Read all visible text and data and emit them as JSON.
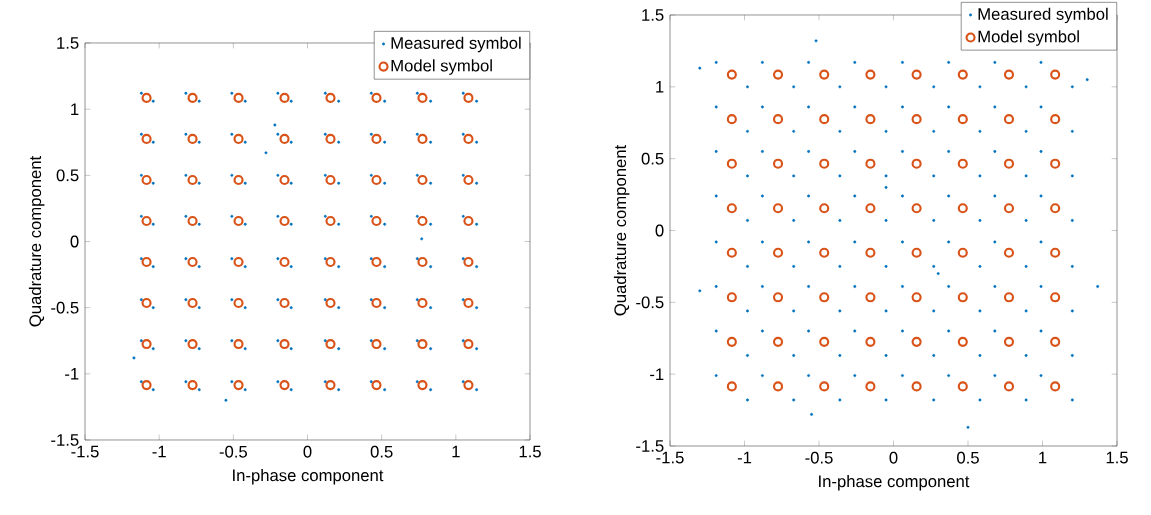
{
  "chart_data": [
    {
      "type": "scatter",
      "xlabel": "In-phase component",
      "ylabel": "Quadrature component",
      "xlim": [
        -1.5,
        1.5
      ],
      "ylim": [
        -1.5,
        1.5
      ],
      "xticks": [
        -1.5,
        -1,
        -0.5,
        0,
        0.5,
        1,
        1.5
      ],
      "yticks": [
        -1.5,
        -1,
        -0.5,
        0,
        0.5,
        1,
        1.5
      ],
      "grid": false,
      "legend": "top right",
      "marker": "circle",
      "series": [
        {
          "name": "Measured symbol",
          "color": "#0072bd",
          "x": [
            -1.12,
            -1.04,
            -0.82,
            -0.73,
            -0.51,
            -0.42,
            -0.2,
            -0.11,
            0.12,
            0.21,
            0.43,
            0.52,
            0.74,
            0.83,
            1.05,
            1.14,
            -1.12,
            -1.04,
            -0.82,
            -0.73,
            -0.51,
            -0.42,
            -0.2,
            -0.11,
            0.12,
            0.21,
            0.43,
            0.52,
            0.74,
            0.83,
            1.05,
            1.14,
            -1.12,
            -1.04,
            -0.82,
            -0.73,
            -0.51,
            -0.42,
            -0.2,
            -0.11,
            0.12,
            0.21,
            0.43,
            0.52,
            0.74,
            0.83,
            1.05,
            1.14,
            -1.12,
            -1.04,
            -0.82,
            -0.73,
            -0.51,
            -0.42,
            -0.2,
            -0.11,
            0.12,
            0.21,
            0.43,
            0.52,
            0.74,
            0.83,
            1.05,
            1.14,
            -1.12,
            -1.04,
            -0.82,
            -0.73,
            -0.51,
            -0.42,
            -0.2,
            -0.11,
            0.12,
            0.21,
            0.43,
            0.52,
            0.74,
            0.83,
            1.05,
            1.14,
            -1.12,
            -1.04,
            -0.82,
            -0.73,
            -0.51,
            -0.42,
            -0.2,
            -0.11,
            0.12,
            0.21,
            0.43,
            0.52,
            0.74,
            0.83,
            1.05,
            1.14,
            -1.12,
            -1.04,
            -0.82,
            -0.73,
            -0.51,
            -0.42,
            -0.2,
            -0.11,
            0.12,
            0.21,
            0.43,
            0.52,
            0.74,
            0.83,
            1.05,
            1.14,
            -1.12,
            -1.04,
            -0.82,
            -0.73,
            -0.51,
            -0.42,
            -0.2,
            -0.11,
            0.12,
            0.21,
            0.43,
            0.52,
            0.74,
            0.83,
            1.05,
            1.14,
            -0.55,
            -0.28,
            -0.22,
            -1.17,
            0.77
          ],
          "values": [
            1.12,
            1.06,
            1.12,
            1.06,
            1.12,
            1.06,
            1.12,
            1.06,
            1.12,
            1.06,
            1.12,
            1.06,
            1.12,
            1.06,
            1.12,
            1.06,
            0.81,
            0.75,
            0.81,
            0.75,
            0.81,
            0.75,
            0.81,
            0.75,
            0.81,
            0.75,
            0.81,
            0.75,
            0.81,
            0.75,
            0.81,
            0.75,
            0.5,
            0.44,
            0.5,
            0.44,
            0.5,
            0.44,
            0.5,
            0.44,
            0.5,
            0.44,
            0.5,
            0.44,
            0.5,
            0.44,
            0.5,
            0.44,
            0.19,
            0.13,
            0.19,
            0.13,
            0.19,
            0.13,
            0.19,
            0.13,
            0.19,
            0.13,
            0.19,
            0.13,
            0.19,
            0.13,
            0.19,
            0.13,
            -0.13,
            -0.19,
            -0.13,
            -0.19,
            -0.13,
            -0.19,
            -0.13,
            -0.19,
            -0.13,
            -0.19,
            -0.13,
            -0.19,
            -0.13,
            -0.19,
            -0.13,
            -0.19,
            -0.44,
            -0.5,
            -0.44,
            -0.5,
            -0.44,
            -0.5,
            -0.44,
            -0.5,
            -0.44,
            -0.5,
            -0.44,
            -0.5,
            -0.44,
            -0.5,
            -0.44,
            -0.5,
            -0.75,
            -0.81,
            -0.75,
            -0.81,
            -0.75,
            -0.81,
            -0.75,
            -0.81,
            -0.75,
            -0.81,
            -0.75,
            -0.81,
            -0.75,
            -0.81,
            -0.75,
            -0.81,
            -1.06,
            -1.12,
            -1.06,
            -1.12,
            -1.06,
            -1.12,
            -1.06,
            -1.12,
            -1.06,
            -1.12,
            -1.06,
            -1.12,
            -1.06,
            -1.12,
            -1.06,
            -1.12,
            -1.2,
            0.67,
            0.88,
            -0.88,
            0.02
          ]
        },
        {
          "name": "Model symbol",
          "color": "#d95319",
          "x": [
            -1.085,
            -0.775,
            -0.465,
            -0.155,
            0.155,
            0.465,
            0.775,
            1.085,
            -1.085,
            -0.775,
            -0.465,
            -0.155,
            0.155,
            0.465,
            0.775,
            1.085,
            -1.085,
            -0.775,
            -0.465,
            -0.155,
            0.155,
            0.465,
            0.775,
            1.085,
            -1.085,
            -0.775,
            -0.465,
            -0.155,
            0.155,
            0.465,
            0.775,
            1.085,
            -1.085,
            -0.775,
            -0.465,
            -0.155,
            0.155,
            0.465,
            0.775,
            1.085,
            -1.085,
            -0.775,
            -0.465,
            -0.155,
            0.155,
            0.465,
            0.775,
            1.085,
            -1.085,
            -0.775,
            -0.465,
            -0.155,
            0.155,
            0.465,
            0.775,
            1.085,
            -1.085,
            -0.775,
            -0.465,
            -0.155,
            0.155,
            0.465,
            0.775,
            1.085
          ],
          "values": [
            1.085,
            1.085,
            1.085,
            1.085,
            1.085,
            1.085,
            1.085,
            1.085,
            0.775,
            0.775,
            0.775,
            0.775,
            0.775,
            0.775,
            0.775,
            0.775,
            0.465,
            0.465,
            0.465,
            0.465,
            0.465,
            0.465,
            0.465,
            0.465,
            0.155,
            0.155,
            0.155,
            0.155,
            0.155,
            0.155,
            0.155,
            0.155,
            -0.155,
            -0.155,
            -0.155,
            -0.155,
            -0.155,
            -0.155,
            -0.155,
            -0.155,
            -0.465,
            -0.465,
            -0.465,
            -0.465,
            -0.465,
            -0.465,
            -0.465,
            -0.465,
            -0.775,
            -0.775,
            -0.775,
            -0.775,
            -0.775,
            -0.775,
            -0.775,
            -0.775,
            -1.085,
            -1.085,
            -1.085,
            -1.085,
            -1.085,
            -1.085,
            -1.085,
            -1.085
          ]
        }
      ]
    },
    {
      "type": "scatter",
      "xlabel": "In-phase component",
      "ylabel": "Quadrature component",
      "xlim": [
        -1.5,
        1.5
      ],
      "ylim": [
        -1.5,
        1.5
      ],
      "xticks": [
        -1.5,
        -1,
        -0.5,
        0,
        0.5,
        1,
        1.5
      ],
      "yticks": [
        -1.5,
        -1,
        -0.5,
        0,
        0.5,
        1,
        1.5
      ],
      "grid": false,
      "legend": "top right",
      "marker": "circle",
      "series": [
        {
          "name": "Measured symbol",
          "color": "#0072bd",
          "x": [
            -1.19,
            -0.98,
            -0.88,
            -0.67,
            -0.57,
            -0.36,
            -0.26,
            -0.05,
            0.06,
            0.27,
            0.37,
            0.58,
            0.68,
            0.89,
            0.99,
            1.2,
            -1.19,
            -0.98,
            -0.88,
            -0.67,
            -0.57,
            -0.36,
            -0.26,
            -0.05,
            0.06,
            0.27,
            0.37,
            0.58,
            0.68,
            0.89,
            0.99,
            1.2,
            -1.19,
            -0.98,
            -0.88,
            -0.67,
            -0.57,
            -0.36,
            -0.26,
            -0.05,
            0.06,
            0.27,
            0.37,
            0.58,
            0.68,
            0.89,
            0.99,
            1.2,
            -1.19,
            -0.98,
            -0.88,
            -0.67,
            -0.57,
            -0.36,
            -0.26,
            -0.05,
            0.06,
            0.27,
            0.37,
            0.58,
            0.68,
            0.89,
            0.99,
            1.2,
            -1.19,
            -0.98,
            -0.88,
            -0.67,
            -0.57,
            -0.36,
            -0.26,
            -0.05,
            0.06,
            0.27,
            0.37,
            0.58,
            0.68,
            0.89,
            0.99,
            1.2,
            -1.19,
            -0.98,
            -0.88,
            -0.67,
            -0.57,
            -0.36,
            -0.26,
            -0.05,
            0.06,
            0.27,
            0.37,
            0.58,
            0.68,
            0.89,
            0.99,
            1.2,
            -1.19,
            -0.98,
            -0.88,
            -0.67,
            -0.57,
            -0.36,
            -0.26,
            -0.05,
            0.06,
            0.27,
            0.37,
            0.58,
            0.68,
            0.89,
            0.99,
            1.2,
            -1.19,
            -0.98,
            -0.88,
            -0.67,
            -0.57,
            -0.36,
            -0.26,
            -0.05,
            0.06,
            0.27,
            0.37,
            0.58,
            0.68,
            0.89,
            0.99,
            1.2,
            1.37,
            0.5,
            -0.52,
            -1.3,
            1.3,
            -1.3,
            -0.55,
            -0.05,
            0.3
          ],
          "values": [
            1.17,
            1.0,
            1.17,
            1.0,
            1.17,
            1.0,
            1.17,
            1.0,
            1.17,
            1.0,
            1.17,
            1.0,
            1.17,
            1.0,
            1.17,
            1.0,
            0.86,
            0.69,
            0.86,
            0.69,
            0.86,
            0.69,
            0.86,
            0.69,
            0.86,
            0.69,
            0.86,
            0.69,
            0.86,
            0.69,
            0.86,
            0.69,
            0.55,
            0.38,
            0.55,
            0.38,
            0.55,
            0.38,
            0.55,
            0.38,
            0.55,
            0.38,
            0.55,
            0.38,
            0.55,
            0.38,
            0.55,
            0.38,
            0.24,
            0.07,
            0.24,
            0.07,
            0.24,
            0.07,
            0.24,
            0.07,
            0.24,
            0.07,
            0.24,
            0.07,
            0.24,
            0.07,
            0.24,
            0.07,
            -0.08,
            -0.25,
            -0.08,
            -0.25,
            -0.08,
            -0.25,
            -0.08,
            -0.25,
            -0.08,
            -0.25,
            -0.08,
            -0.25,
            -0.08,
            -0.25,
            -0.08,
            -0.25,
            -0.39,
            -0.56,
            -0.39,
            -0.56,
            -0.39,
            -0.56,
            -0.39,
            -0.56,
            -0.39,
            -0.56,
            -0.39,
            -0.56,
            -0.39,
            -0.56,
            -0.39,
            -0.56,
            -0.7,
            -0.87,
            -0.7,
            -0.87,
            -0.7,
            -0.87,
            -0.7,
            -0.87,
            -0.7,
            -0.87,
            -0.7,
            -0.87,
            -0.7,
            -0.87,
            -0.7,
            -0.87,
            -1.01,
            -1.18,
            -1.01,
            -1.18,
            -1.01,
            -1.18,
            -1.01,
            -1.18,
            -1.01,
            -1.18,
            -1.01,
            -1.18,
            -1.01,
            -1.18,
            -1.01,
            -1.18,
            -0.39,
            -1.37,
            1.32,
            1.13,
            1.05,
            -0.42,
            -1.28,
            0.3,
            -0.3
          ]
        },
        {
          "name": "Model symbol",
          "color": "#d95319",
          "x": [
            -1.085,
            -0.775,
            -0.465,
            -0.155,
            0.155,
            0.465,
            0.775,
            1.085,
            -1.085,
            -0.775,
            -0.465,
            -0.155,
            0.155,
            0.465,
            0.775,
            1.085,
            -1.085,
            -0.775,
            -0.465,
            -0.155,
            0.155,
            0.465,
            0.775,
            1.085,
            -1.085,
            -0.775,
            -0.465,
            -0.155,
            0.155,
            0.465,
            0.775,
            1.085,
            -1.085,
            -0.775,
            -0.465,
            -0.155,
            0.155,
            0.465,
            0.775,
            1.085,
            -1.085,
            -0.775,
            -0.465,
            -0.155,
            0.155,
            0.465,
            0.775,
            1.085,
            -1.085,
            -0.775,
            -0.465,
            -0.155,
            0.155,
            0.465,
            0.775,
            1.085,
            -1.085,
            -0.775,
            -0.465,
            -0.155,
            0.155,
            0.465,
            0.775,
            1.085
          ],
          "values": [
            1.085,
            1.085,
            1.085,
            1.085,
            1.085,
            1.085,
            1.085,
            1.085,
            0.775,
            0.775,
            0.775,
            0.775,
            0.775,
            0.775,
            0.775,
            0.775,
            0.465,
            0.465,
            0.465,
            0.465,
            0.465,
            0.465,
            0.465,
            0.465,
            0.155,
            0.155,
            0.155,
            0.155,
            0.155,
            0.155,
            0.155,
            0.155,
            -0.155,
            -0.155,
            -0.155,
            -0.155,
            -0.155,
            -0.155,
            -0.155,
            -0.155,
            -0.465,
            -0.465,
            -0.465,
            -0.465,
            -0.465,
            -0.465,
            -0.465,
            -0.465,
            -0.775,
            -0.775,
            -0.775,
            -0.775,
            -0.775,
            -0.775,
            -0.775,
            -0.775,
            -1.085,
            -1.085,
            -1.085,
            -1.085,
            -1.085,
            -1.085,
            -1.085,
            -1.085
          ]
        }
      ]
    }
  ]
}
